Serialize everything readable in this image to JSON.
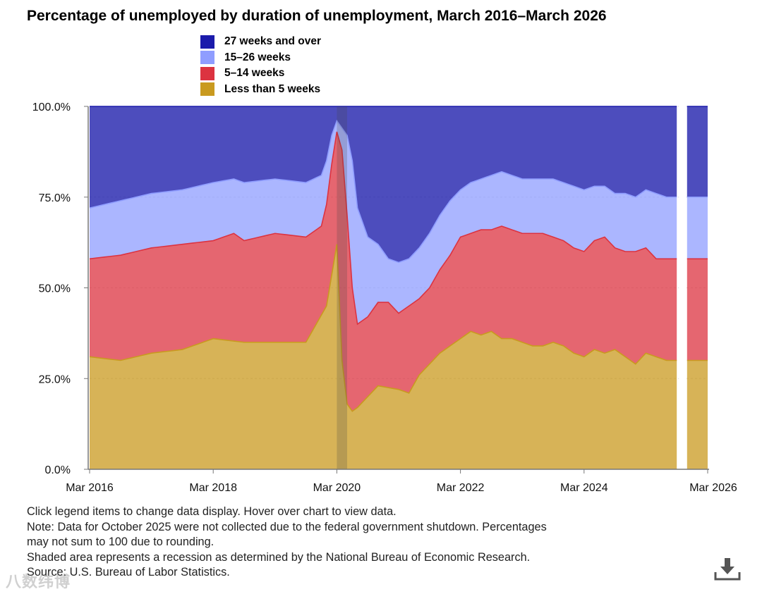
{
  "title": "Percentage of unemployed by duration of unemployment, March 2016–March 2026",
  "legend": [
    {
      "label": "27 weeks and over",
      "color": "#1b1bab"
    },
    {
      "label": "15–26 weeks",
      "color": "#8f9dff"
    },
    {
      "label": "5–14 weeks",
      "color": "#dc3340"
    },
    {
      "label": "Less than 5 weeks",
      "color": "#c99a1f"
    }
  ],
  "notes": {
    "line1": "Click legend items to change data display. Hover over chart to view data.",
    "line2": "Note: Data for October 2025 were not collected due to the federal government shutdown. Percentages",
    "line3": "may not sum to 100 due to rounding.",
    "line4": "Shaded area represents a recession as determined by the National Bureau of Economic Research.",
    "line5": "Source: U.S. Bureau of Labor Statistics."
  },
  "icons": {
    "download": "download-icon"
  },
  "watermark": "八数纬博",
  "chart_data": {
    "type": "area",
    "stacked": true,
    "start_month": "Mar 2016",
    "end_month": "Mar 2026",
    "x_tick_labels": [
      "Mar 2016",
      "Mar 2018",
      "Mar 2020",
      "Mar 2022",
      "Mar 2024",
      "Mar 2026"
    ],
    "y_tick_labels": [
      "0.0%",
      "25.0%",
      "50.0%",
      "75.0%",
      "100.0%"
    ],
    "ylim": [
      0,
      100
    ],
    "recession": {
      "start": "Mar 2020",
      "end": "Apr 2020"
    },
    "missing_month": "Oct 2025",
    "cumulative_upper_boundaries": {
      "less_than_5_weeks": [
        [
          0,
          31
        ],
        [
          6,
          30
        ],
        [
          12,
          32
        ],
        [
          18,
          33
        ],
        [
          24,
          36
        ],
        [
          30,
          35
        ],
        [
          36,
          35
        ],
        [
          42,
          35
        ],
        [
          46,
          45
        ],
        [
          48,
          62
        ],
        [
          49,
          30
        ],
        [
          50,
          18
        ],
        [
          51,
          16
        ],
        [
          52,
          17
        ],
        [
          54,
          20
        ],
        [
          56,
          23
        ],
        [
          60,
          22
        ],
        [
          62,
          21
        ],
        [
          64,
          26
        ],
        [
          66,
          29
        ],
        [
          68,
          32
        ],
        [
          70,
          34
        ],
        [
          72,
          36
        ],
        [
          74,
          38
        ],
        [
          76,
          37
        ],
        [
          78,
          38
        ],
        [
          80,
          36
        ],
        [
          82,
          36
        ],
        [
          84,
          35
        ],
        [
          86,
          34
        ],
        [
          88,
          34
        ],
        [
          90,
          35
        ],
        [
          92,
          34
        ],
        [
          94,
          32
        ],
        [
          96,
          31
        ],
        [
          98,
          33
        ],
        [
          100,
          32
        ],
        [
          102,
          33
        ],
        [
          104,
          31
        ],
        [
          106,
          29
        ],
        [
          108,
          32
        ],
        [
          110,
          31
        ],
        [
          112,
          30
        ],
        [
          114,
          30
        ],
        [
          116,
          30
        ],
        [
          117,
          30
        ],
        [
          118,
          30
        ],
        [
          119,
          30
        ],
        [
          120,
          30
        ]
      ],
      "five_to_14_weeks": [
        [
          0,
          58
        ],
        [
          6,
          59
        ],
        [
          12,
          61
        ],
        [
          18,
          62
        ],
        [
          24,
          63
        ],
        [
          28,
          65
        ],
        [
          30,
          63
        ],
        [
          36,
          65
        ],
        [
          42,
          64
        ],
        [
          45,
          67
        ],
        [
          46,
          73
        ],
        [
          47,
          84
        ],
        [
          48,
          93
        ],
        [
          49,
          88
        ],
        [
          50,
          70
        ],
        [
          51,
          50
        ],
        [
          52,
          40
        ],
        [
          54,
          42
        ],
        [
          56,
          46
        ],
        [
          58,
          46
        ],
        [
          60,
          43
        ],
        [
          62,
          45
        ],
        [
          64,
          47
        ],
        [
          66,
          50
        ],
        [
          68,
          55
        ],
        [
          70,
          59
        ],
        [
          72,
          64
        ],
        [
          74,
          65
        ],
        [
          76,
          66
        ],
        [
          78,
          66
        ],
        [
          80,
          67
        ],
        [
          82,
          66
        ],
        [
          84,
          65
        ],
        [
          86,
          65
        ],
        [
          88,
          65
        ],
        [
          90,
          64
        ],
        [
          92,
          63
        ],
        [
          94,
          61
        ],
        [
          96,
          60
        ],
        [
          98,
          63
        ],
        [
          100,
          64
        ],
        [
          102,
          61
        ],
        [
          104,
          60
        ],
        [
          106,
          60
        ],
        [
          108,
          61
        ],
        [
          110,
          58
        ],
        [
          112,
          58
        ],
        [
          114,
          58
        ],
        [
          116,
          58
        ],
        [
          117,
          58
        ],
        [
          118,
          58
        ],
        [
          119,
          58
        ],
        [
          120,
          58
        ]
      ],
      "fifteen_to_26_weeks": [
        [
          0,
          72
        ],
        [
          6,
          74
        ],
        [
          12,
          76
        ],
        [
          18,
          77
        ],
        [
          24,
          79
        ],
        [
          28,
          80
        ],
        [
          30,
          79
        ],
        [
          36,
          80
        ],
        [
          42,
          79
        ],
        [
          45,
          81
        ],
        [
          46,
          85
        ],
        [
          47,
          92
        ],
        [
          48,
          96
        ],
        [
          49,
          94
        ],
        [
          50,
          92
        ],
        [
          51,
          85
        ],
        [
          52,
          72
        ],
        [
          54,
          64
        ],
        [
          56,
          62
        ],
        [
          58,
          58
        ],
        [
          60,
          57
        ],
        [
          62,
          58
        ],
        [
          64,
          61
        ],
        [
          66,
          65
        ],
        [
          68,
          70
        ],
        [
          70,
          74
        ],
        [
          72,
          77
        ],
        [
          74,
          79
        ],
        [
          76,
          80
        ],
        [
          78,
          81
        ],
        [
          80,
          82
        ],
        [
          82,
          81
        ],
        [
          84,
          80
        ],
        [
          86,
          80
        ],
        [
          88,
          80
        ],
        [
          90,
          80
        ],
        [
          92,
          79
        ],
        [
          94,
          78
        ],
        [
          96,
          77
        ],
        [
          98,
          78
        ],
        [
          100,
          78
        ],
        [
          102,
          76
        ],
        [
          104,
          76
        ],
        [
          106,
          75
        ],
        [
          108,
          77
        ],
        [
          110,
          76
        ],
        [
          112,
          75
        ],
        [
          114,
          75
        ],
        [
          116,
          75
        ],
        [
          117,
          75
        ],
        [
          118,
          75
        ],
        [
          119,
          75
        ],
        [
          120,
          75
        ]
      ],
      "twenty_seven_weeks_and_over": [
        [
          0,
          100
        ],
        [
          120,
          100
        ]
      ]
    }
  }
}
